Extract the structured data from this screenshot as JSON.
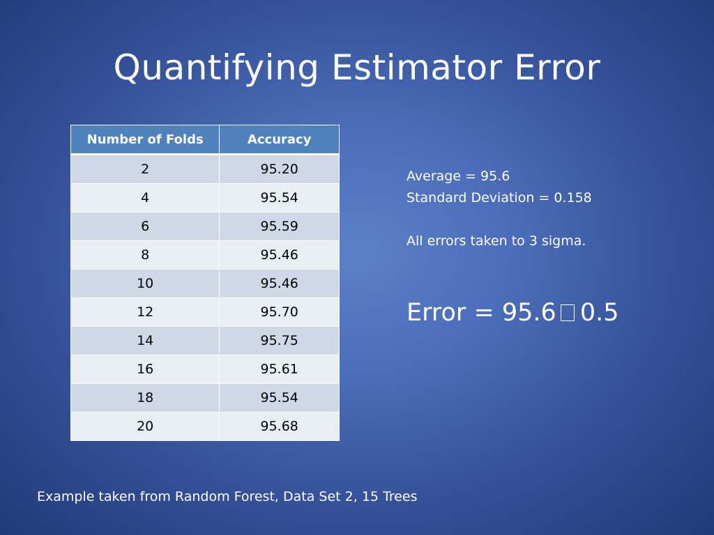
{
  "slide": {
    "title": "Quantifying Estimator Error",
    "table": {
      "headers": [
        "Number of Folds",
        "Accuracy"
      ],
      "rows": [
        [
          "2",
          "95.20"
        ],
        [
          "4",
          "95.54"
        ],
        [
          "6",
          "95.59"
        ],
        [
          "8",
          "95.46"
        ],
        [
          "10",
          "95.46"
        ],
        [
          "12",
          "95.70"
        ],
        [
          "14",
          "95.75"
        ],
        [
          "16",
          "95.61"
        ],
        [
          "18",
          "95.54"
        ],
        [
          "20",
          "95.68"
        ]
      ]
    },
    "stats": {
      "average": "Average = 95.6",
      "std_dev": "Standard Deviation = 0.158",
      "note": "All errors taken to 3 sigma."
    },
    "error": {
      "prefix": "Error = 95.6",
      "suffix": "0.5",
      "missing_glyph_icon": "missing-glyph-box"
    },
    "footnote": "Example taken from Random Forest, Data Set 2, 15 Trees"
  },
  "colors": {
    "background_center": "#5d80ca",
    "background_edge": "#213a78",
    "table_header": "#4f81bd",
    "table_row_odd": "#d0d8e8",
    "table_row_even": "#e9edf4",
    "text": "#ffffff"
  }
}
